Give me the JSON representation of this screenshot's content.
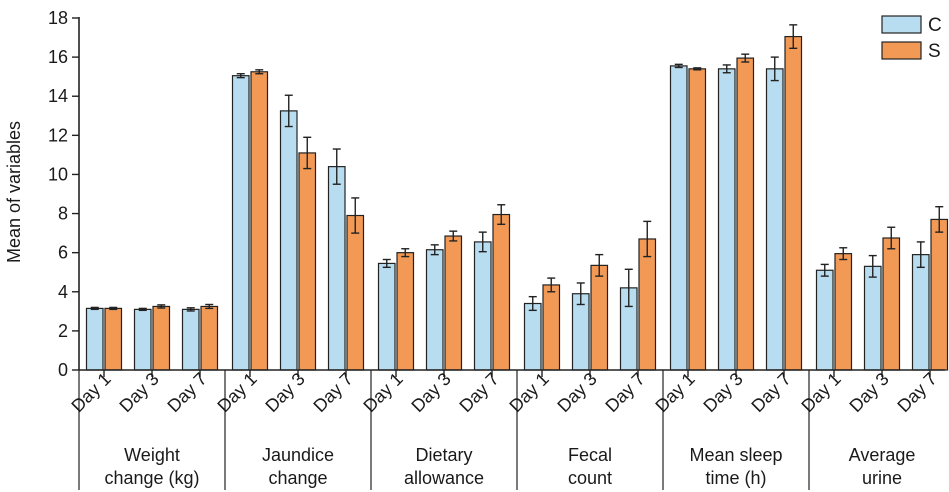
{
  "chart_data": {
    "type": "bar",
    "title": "",
    "xlabel": "",
    "ylabel": "Mean of variables",
    "ylim": [
      0,
      18
    ],
    "yticks": [
      0,
      2,
      4,
      6,
      8,
      10,
      12,
      14,
      16,
      18
    ],
    "ytick_labels": [
      "0",
      "2",
      "4",
      "6",
      "8",
      "10",
      "12",
      "14",
      "16",
      "18"
    ],
    "grid": false,
    "legend_position": "top-right",
    "sub_labels": [
      "Day 1",
      "Day 3",
      "Day 7"
    ],
    "groups": [
      {
        "label_lines": [
          "Weight",
          "change (kg)"
        ]
      },
      {
        "label_lines": [
          "Jaundice",
          "change"
        ]
      },
      {
        "label_lines": [
          "Dietary",
          "allowance"
        ]
      },
      {
        "label_lines": [
          "Fecal",
          "count"
        ]
      },
      {
        "label_lines": [
          "Mean sleep",
          "time (h)"
        ]
      },
      {
        "label_lines": [
          "Average",
          "urine"
        ]
      }
    ],
    "series": [
      {
        "name": "C",
        "color": "#b9ddf0",
        "values": [
          [
            3.15,
            3.1,
            3.1
          ],
          [
            15.05,
            13.25,
            10.4
          ],
          [
            5.45,
            6.15,
            6.55
          ],
          [
            3.4,
            3.9,
            4.2
          ],
          [
            15.55,
            15.4,
            15.4
          ],
          [
            5.1,
            5.3,
            5.9
          ]
        ],
        "errors": [
          [
            0.05,
            0.05,
            0.08
          ],
          [
            0.1,
            0.8,
            0.9
          ],
          [
            0.2,
            0.25,
            0.5
          ],
          [
            0.35,
            0.55,
            0.95
          ],
          [
            0.08,
            0.2,
            0.6
          ],
          [
            0.3,
            0.55,
            0.65
          ]
        ]
      },
      {
        "name": "S",
        "color": "#f29a55",
        "values": [
          [
            3.15,
            3.25,
            3.25
          ],
          [
            15.25,
            11.1,
            7.9
          ],
          [
            6.0,
            6.85,
            7.95
          ],
          [
            4.35,
            5.35,
            6.7
          ],
          [
            15.4,
            15.95,
            17.05
          ],
          [
            5.95,
            6.75,
            7.7
          ]
        ],
        "errors": [
          [
            0.05,
            0.08,
            0.1
          ],
          [
            0.1,
            0.8,
            0.9
          ],
          [
            0.2,
            0.25,
            0.5
          ],
          [
            0.35,
            0.55,
            0.9
          ],
          [
            0.05,
            0.2,
            0.6
          ],
          [
            0.3,
            0.55,
            0.65
          ]
        ]
      }
    ]
  }
}
